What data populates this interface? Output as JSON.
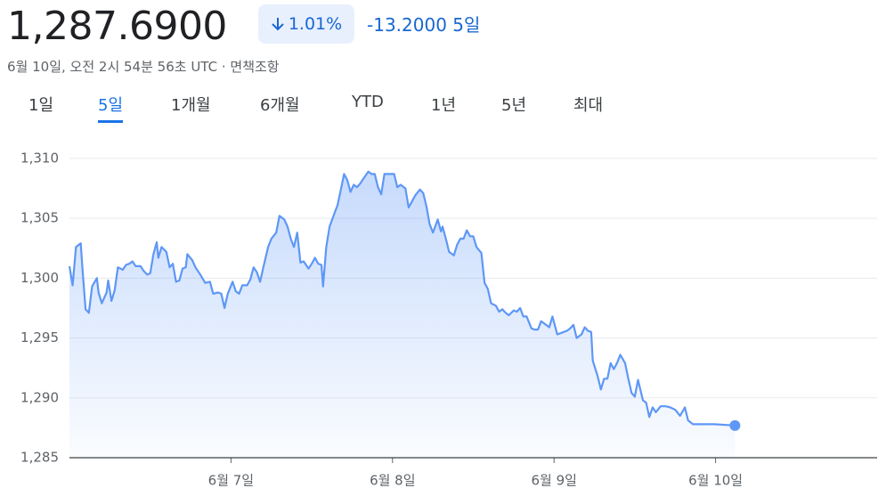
{
  "header": {
    "price": "1,287.6900",
    "change_percent": "1.01%",
    "change": "-13.2000",
    "period": "5일",
    "timestamp": "6월 10일, 오전 2시 54분 56초 UTC ·",
    "disclaimer": "면책조항"
  },
  "tabs": {
    "items": [
      "1일",
      "5일",
      "1개월",
      "6개월",
      "YTD",
      "1년",
      "5년",
      "최대"
    ],
    "selected": "5일"
  },
  "chart_data": {
    "type": "line",
    "color": "#5e97f6",
    "grid": true,
    "xlim": [
      6,
      11
    ],
    "ylim": [
      1285,
      1312
    ],
    "xticks": [
      {
        "value": 7,
        "label": "6월 7일"
      },
      {
        "value": 8,
        "label": "6월 8일"
      },
      {
        "value": 9,
        "label": "6월 9일"
      },
      {
        "value": 10,
        "label": "6월 10일"
      }
    ],
    "yticks": [
      {
        "value": 1285,
        "label": "1,285"
      },
      {
        "value": 1290,
        "label": "1,290"
      },
      {
        "value": 1295,
        "label": "1,295"
      },
      {
        "value": 1300,
        "label": "1,300"
      },
      {
        "value": 1305,
        "label": "1,305"
      },
      {
        "value": 1310,
        "label": "1,310"
      }
    ],
    "x": [
      6.0,
      6.02,
      6.04,
      6.07,
      6.08,
      6.1,
      6.12,
      6.14,
      6.17,
      6.18,
      6.2,
      6.23,
      6.24,
      6.26,
      6.28,
      6.3,
      6.33,
      6.35,
      6.37,
      6.39,
      6.41,
      6.44,
      6.46,
      6.48,
      6.5,
      6.52,
      6.54,
      6.55,
      6.57,
      6.6,
      6.62,
      6.64,
      6.66,
      6.68,
      6.7,
      6.72,
      6.73,
      6.76,
      6.78,
      6.81,
      6.84,
      6.87,
      6.89,
      6.92,
      6.94,
      6.96,
      6.98,
      7.01,
      7.03,
      7.05,
      7.07,
      7.1,
      7.12,
      7.14,
      7.16,
      7.18,
      7.2,
      7.23,
      7.25,
      7.28,
      7.3,
      7.33,
      7.35,
      7.37,
      7.39,
      7.41,
      7.43,
      7.45,
      7.48,
      7.5,
      7.52,
      7.54,
      7.56,
      7.57,
      7.59,
      7.61,
      7.64,
      7.66,
      7.68,
      7.7,
      7.72,
      7.74,
      7.76,
      7.78,
      7.8,
      7.82,
      7.85,
      7.87,
      7.89,
      7.91,
      7.93,
      7.95,
      7.99,
      8.01,
      8.03,
      8.05,
      8.08,
      8.1,
      8.12,
      8.14,
      8.17,
      8.19,
      8.21,
      8.23,
      8.25,
      8.28,
      8.3,
      8.31,
      8.33,
      8.35,
      8.38,
      8.4,
      8.42,
      8.44,
      8.46,
      8.48,
      8.5,
      8.52,
      8.55,
      8.57,
      8.59,
      8.61,
      8.64,
      8.66,
      8.68,
      8.7,
      8.72,
      8.75,
      8.77,
      8.79,
      8.81,
      8.83,
      8.86,
      8.88,
      8.9,
      8.92,
      8.94,
      8.97,
      8.99,
      9.02,
      9.04,
      9.06,
      9.08,
      9.1,
      9.12,
      9.14,
      9.17,
      9.19,
      9.21,
      9.23,
      9.24,
      9.27,
      9.29,
      9.31,
      9.33,
      9.35,
      9.37,
      9.39,
      9.41,
      9.44,
      9.46,
      9.48,
      9.5,
      9.52,
      9.55,
      9.57,
      9.59,
      9.61,
      9.63,
      9.66,
      9.69,
      9.72,
      9.75,
      9.78,
      9.81,
      9.83,
      9.86,
      9.99,
      10.12
    ],
    "values": [
      1301.0,
      1299.4,
      1302.6,
      1302.9,
      1300.9,
      1297.4,
      1297.1,
      1299.3,
      1300.0,
      1298.8,
      1297.9,
      1298.8,
      1299.8,
      1298.1,
      1299.0,
      1300.9,
      1300.7,
      1301.1,
      1301.2,
      1301.4,
      1301.0,
      1301.0,
      1300.6,
      1300.3,
      1300.4,
      1302.0,
      1303.0,
      1301.7,
      1302.6,
      1302.2,
      1300.9,
      1301.2,
      1299.7,
      1299.8,
      1300.8,
      1300.9,
      1302.0,
      1301.5,
      1300.9,
      1300.3,
      1299.6,
      1299.7,
      1298.7,
      1298.8,
      1298.7,
      1297.5,
      1298.7,
      1299.7,
      1298.9,
      1298.7,
      1299.4,
      1299.4,
      1299.9,
      1300.9,
      1300.5,
      1299.7,
      1300.9,
      1302.6,
      1303.3,
      1303.8,
      1305.2,
      1304.9,
      1304.3,
      1303.3,
      1302.6,
      1303.8,
      1301.3,
      1301.4,
      1300.8,
      1301.2,
      1301.7,
      1301.2,
      1301.1,
      1299.3,
      1302.6,
      1304.3,
      1305.4,
      1306.1,
      1307.4,
      1308.7,
      1308.2,
      1307.2,
      1307.8,
      1307.6,
      1307.9,
      1308.3,
      1308.9,
      1308.7,
      1308.7,
      1307.6,
      1307.0,
      1308.7,
      1308.7,
      1308.7,
      1307.6,
      1307.8,
      1307.5,
      1305.9,
      1306.4,
      1306.9,
      1307.4,
      1307.1,
      1306.0,
      1304.5,
      1303.8,
      1304.9,
      1303.9,
      1304.3,
      1303.3,
      1302.2,
      1301.9,
      1302.8,
      1303.3,
      1303.3,
      1304.0,
      1303.5,
      1303.5,
      1302.6,
      1302.1,
      1299.6,
      1299.1,
      1297.9,
      1297.7,
      1297.2,
      1297.4,
      1297.1,
      1296.9,
      1297.3,
      1297.2,
      1297.5,
      1296.8,
      1296.8,
      1295.8,
      1295.7,
      1295.7,
      1296.4,
      1296.2,
      1295.9,
      1296.8,
      1295.3,
      1295.4,
      1295.5,
      1295.6,
      1295.8,
      1296.1,
      1295.0,
      1295.3,
      1295.9,
      1295.6,
      1295.5,
      1293.1,
      1291.8,
      1290.7,
      1291.6,
      1291.6,
      1292.9,
      1292.4,
      1292.9,
      1293.6,
      1292.9,
      1291.6,
      1290.4,
      1290.1,
      1291.5,
      1289.8,
      1289.6,
      1288.4,
      1289.2,
      1288.8,
      1289.3,
      1289.3,
      1289.2,
      1289.0,
      1288.5,
      1289.2,
      1288.1,
      1287.8,
      1287.8,
      1287.69
    ]
  }
}
